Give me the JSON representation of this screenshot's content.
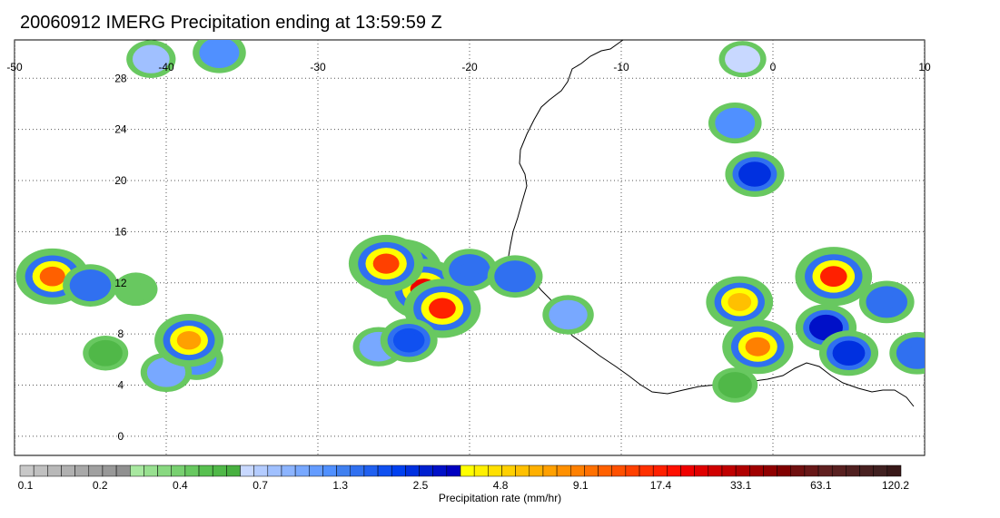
{
  "title": "20060912 IMERG Precipitation ending at 13:59:59 Z",
  "map": {
    "lon_range": [
      -50,
      10
    ],
    "lat_range": [
      -1.5,
      31
    ],
    "lon_ticks": [
      -50,
      -40,
      -30,
      -20,
      -10,
      0,
      10
    ],
    "lat_ticks": [
      0,
      4,
      8,
      12,
      16,
      20,
      24,
      28
    ],
    "lon_tick_labels": [
      "-50",
      "-40",
      "-30",
      "-20",
      "-10",
      "0",
      "10"
    ],
    "lat_tick_labels": [
      "0",
      "4",
      "8",
      "12",
      "16",
      "20",
      "24",
      "28"
    ],
    "grid": true,
    "grid_style": "dotted"
  },
  "legend": {
    "title": "Precipitation rate (mm/hr)",
    "labels": [
      "0.1",
      "0.2",
      "0.4",
      "0.7",
      "1.3",
      "2.5",
      "4.8",
      "9.1",
      "17.4",
      "33.1",
      "63.1",
      "120.2"
    ],
    "colors": [
      "#c8c8c8",
      "#c0c0c0",
      "#b8b8b8",
      "#b0b0b0",
      "#a8a8a8",
      "#a0a0a0",
      "#989898",
      "#909090",
      "#a8e8a0",
      "#98e090",
      "#88d880",
      "#78d070",
      "#68c860",
      "#58c050",
      "#50b848",
      "#48b040",
      "#c8d8ff",
      "#b4ccff",
      "#a0c0ff",
      "#8cb4ff",
      "#78a8ff",
      "#649cff",
      "#5090ff",
      "#4080f0",
      "#3070f0",
      "#2060f0",
      "#1050f0",
      "#0040f0",
      "#0030e0",
      "#0020d0",
      "#0010c8",
      "#0000c0",
      "#ffff00",
      "#fff000",
      "#ffe000",
      "#ffd000",
      "#ffc000",
      "#ffb000",
      "#ffa000",
      "#ff9000",
      "#ff8000",
      "#ff7000",
      "#ff6000",
      "#ff5000",
      "#ff4000",
      "#ff3000",
      "#ff2000",
      "#ff1000",
      "#f00000",
      "#e00000",
      "#d00000",
      "#c00000",
      "#b00000",
      "#a00000",
      "#900000",
      "#800000",
      "#701010",
      "#681818",
      "#602020",
      "#582020",
      "#502020",
      "#482020",
      "#402020",
      "#381818"
    ]
  },
  "precip_cells": [
    {
      "lon": -24.5,
      "lat": 13.0,
      "level": 50
    },
    {
      "lon": -23.0,
      "lat": 11.5,
      "level": 48
    },
    {
      "lon": -21.8,
      "lat": 10.0,
      "level": 46
    },
    {
      "lon": -25.5,
      "lat": 13.5,
      "level": 44
    },
    {
      "lon": -20.0,
      "lat": 13.0,
      "level": 24
    },
    {
      "lon": -26.0,
      "lat": 7.0,
      "level": 20
    },
    {
      "lon": -24.0,
      "lat": 7.5,
      "level": 26
    },
    {
      "lon": -2.2,
      "lat": 10.5,
      "level": 36
    },
    {
      "lon": -1.0,
      "lat": 7.0,
      "level": 40
    },
    {
      "lon": 4.0,
      "lat": 12.5,
      "level": 46
    },
    {
      "lon": 3.5,
      "lat": 8.5,
      "level": 30
    },
    {
      "lon": 5.0,
      "lat": 6.5,
      "level": 28
    },
    {
      "lon": 7.5,
      "lat": 10.5,
      "level": 24
    },
    {
      "lon": 9.5,
      "lat": 6.5,
      "level": 24
    },
    {
      "lon": -1.2,
      "lat": 20.5,
      "level": 28
    },
    {
      "lon": -2.5,
      "lat": 24.5,
      "level": 22
    },
    {
      "lon": -38.0,
      "lat": 6.0,
      "level": 22
    },
    {
      "lon": -40.0,
      "lat": 5.0,
      "level": 20
    },
    {
      "lon": -38.5,
      "lat": 7.5,
      "level": 38
    },
    {
      "lon": -47.5,
      "lat": 12.5,
      "level": 42
    },
    {
      "lon": -45.0,
      "lat": 11.8,
      "level": 24
    },
    {
      "lon": -42.0,
      "lat": 11.5,
      "level": 12
    },
    {
      "lon": -44.0,
      "lat": 6.5,
      "level": 14
    },
    {
      "lon": -36.5,
      "lat": 30.0,
      "level": 22
    },
    {
      "lon": -41.0,
      "lat": 29.5,
      "level": 18
    },
    {
      "lon": -17.0,
      "lat": 12.5,
      "level": 24
    },
    {
      "lon": -13.5,
      "lat": 9.5,
      "level": 20
    },
    {
      "lon": -2.0,
      "lat": 29.5,
      "level": 16
    },
    {
      "lon": -2.5,
      "lat": 4.0,
      "level": 14
    }
  ]
}
